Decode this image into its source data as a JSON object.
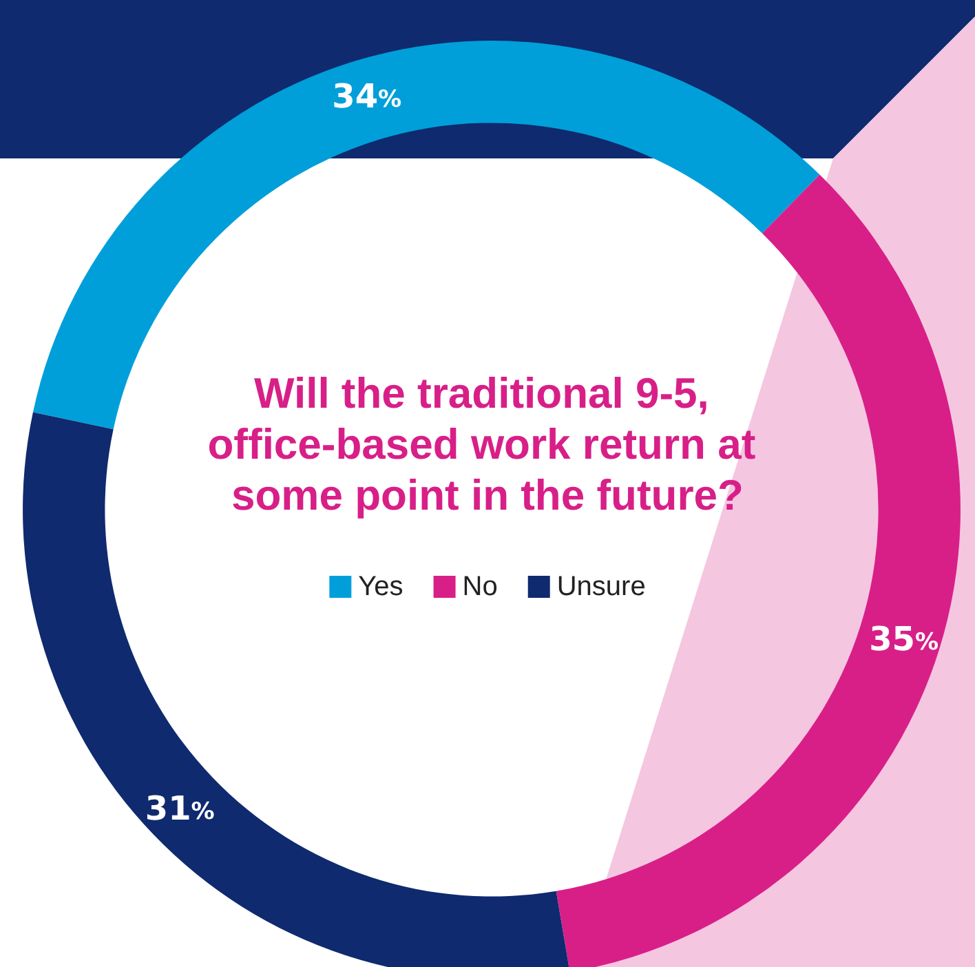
{
  "chart_data": {
    "type": "donut",
    "title": "Will the traditional 9-5, office-based work return at some point in the future?",
    "categories": [
      "Yes",
      "No",
      "Unsure"
    ],
    "values": [
      34,
      35,
      31
    ],
    "colors": [
      "#009fda",
      "#d81f88",
      "#0f2a6e"
    ],
    "value_labels": [
      "34%",
      "35%",
      "31%"
    ],
    "legend": "center"
  }
}
